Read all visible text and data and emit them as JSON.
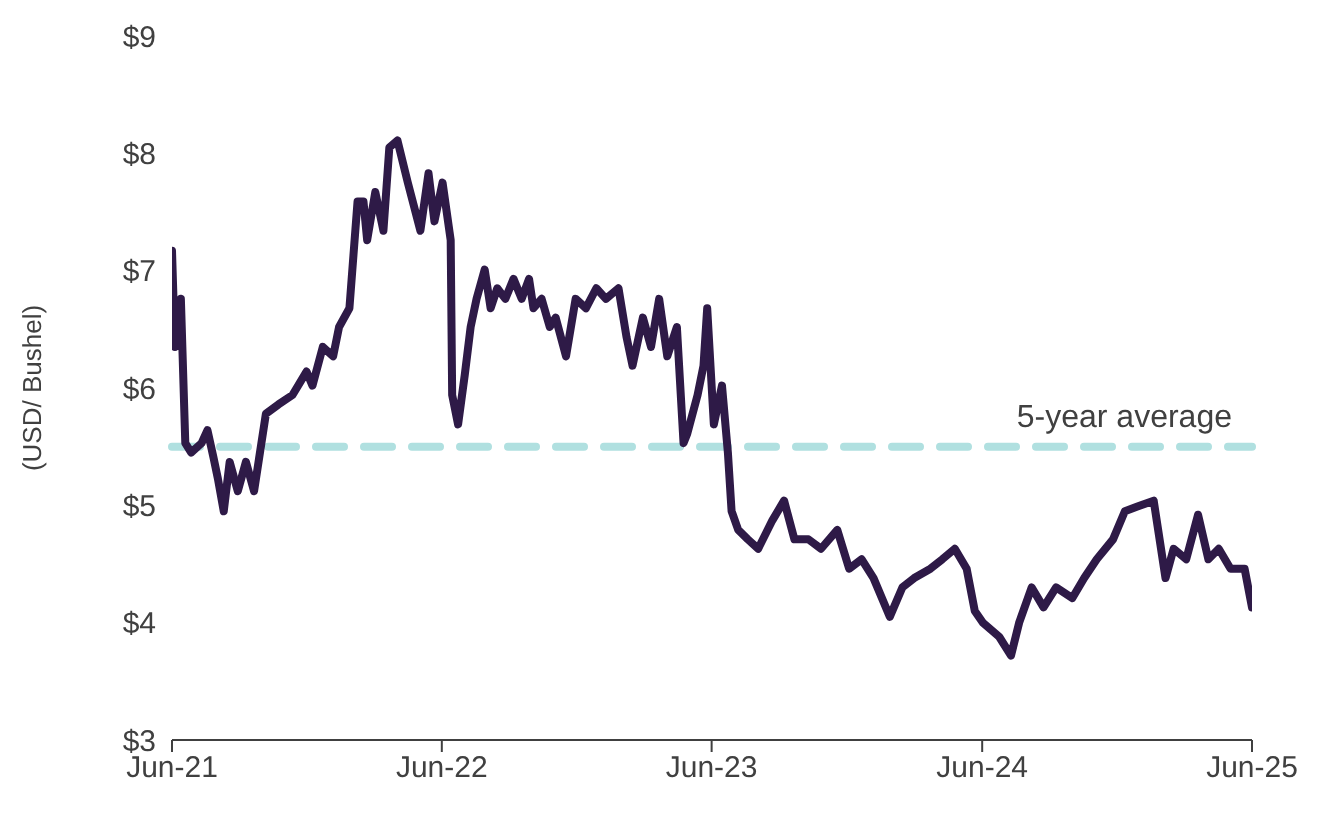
{
  "chart_data": {
    "type": "line",
    "ylabel": "(USD/ Bushel)",
    "xlim": [
      "2021-06-01",
      "2025-06-01"
    ],
    "xticks": [
      {
        "value": "2021-06-01",
        "label": "Jun-21"
      },
      {
        "value": "2022-06-01",
        "label": "Jun-22"
      },
      {
        "value": "2023-06-01",
        "label": "Jun-23"
      },
      {
        "value": "2024-06-01",
        "label": "Jun-24"
      },
      {
        "value": "2025-06-01",
        "label": "Jun-25"
      }
    ],
    "ylim": [
      3,
      9
    ],
    "yticks": [
      {
        "value": 3,
        "label": "$3"
      },
      {
        "value": 4,
        "label": "$4"
      },
      {
        "value": 5,
        "label": "$5"
      },
      {
        "value": 6,
        "label": "$6"
      },
      {
        "value": 7,
        "label": "$7"
      },
      {
        "value": 8,
        "label": "$8"
      },
      {
        "value": 9,
        "label": "$9"
      }
    ],
    "grid": false,
    "legend": false,
    "marker": "none",
    "line_style": "solid",
    "ref_lines": [
      {
        "axis": "y",
        "value": 5.5,
        "label": "5-year average",
        "color": "#b0e0e0",
        "line_style": "dashed"
      }
    ],
    "x": [
      "2021-06-01",
      "2021-06-05",
      "2021-06-13",
      "2021-06-19",
      "2021-06-27",
      "2021-07-11",
      "2021-07-19",
      "2021-07-27",
      "2021-08-02",
      "2021-08-10",
      "2021-08-18",
      "2021-08-29",
      "2021-09-09",
      "2021-09-20",
      "2021-10-06",
      "2021-10-23",
      "2021-11-11",
      "2021-11-30",
      "2021-12-08",
      "2021-12-22",
      "2022-01-05",
      "2022-01-13",
      "2022-01-27",
      "2022-02-07",
      "2022-02-15",
      "2022-02-20",
      "2022-03-03",
      "2022-03-14",
      "2022-03-22",
      "2022-04-02",
      "2022-04-16",
      "2022-05-03",
      "2022-05-14",
      "2022-05-22",
      "2022-06-02",
      "2022-06-13",
      "2022-06-15",
      "2022-06-23",
      "2022-07-02",
      "2022-07-10",
      "2022-07-18",
      "2022-07-29",
      "2022-08-06",
      "2022-08-15",
      "2022-08-26",
      "2022-09-06",
      "2022-09-17",
      "2022-09-27",
      "2022-10-03",
      "2022-10-14",
      "2022-10-25",
      "2022-11-02",
      "2022-11-16",
      "2022-11-29",
      "2022-12-13",
      "2022-12-27",
      "2023-01-09",
      "2023-01-26",
      "2023-02-06",
      "2023-02-14",
      "2023-02-28",
      "2023-03-11",
      "2023-03-22",
      "2023-04-02",
      "2023-04-15",
      "2023-04-24",
      "2023-04-29",
      "2023-05-13",
      "2023-05-21",
      "2023-05-26",
      "2023-06-04",
      "2023-06-15",
      "2023-06-23",
      "2023-06-28",
      "2023-07-07",
      "2023-07-20",
      "2023-08-03",
      "2023-08-22",
      "2023-09-07",
      "2023-09-21",
      "2023-10-10",
      "2023-10-27",
      "2023-11-18",
      "2023-12-04",
      "2023-12-21",
      "2024-01-06",
      "2024-01-28",
      "2024-02-14",
      "2024-03-01",
      "2024-03-23",
      "2024-04-08",
      "2024-04-25",
      "2024-05-11",
      "2024-05-22",
      "2024-06-02",
      "2024-06-24",
      "2024-07-10",
      "2024-07-21",
      "2024-08-07",
      "2024-08-23",
      "2024-09-09",
      "2024-10-01",
      "2024-10-17",
      "2024-11-03",
      "2024-11-25",
      "2024-12-11",
      "2024-12-28",
      "2025-01-19",
      "2025-02-04",
      "2025-02-15",
      "2025-03-04",
      "2025-03-20",
      "2025-04-03",
      "2025-04-17",
      "2025-05-03",
      "2025-05-22",
      "2025-06-01"
    ],
    "series": [
      {
        "color": "#2e1a47",
        "values": [
          7.17,
          6.35,
          6.76,
          5.53,
          5.45,
          5.53,
          5.64,
          5.41,
          5.23,
          4.95,
          5.37,
          5.12,
          5.37,
          5.12,
          5.78,
          5.86,
          5.94,
          6.14,
          6.02,
          6.35,
          6.27,
          6.52,
          6.68,
          7.59,
          7.59,
          7.26,
          7.67,
          7.34,
          8.05,
          8.11,
          7.75,
          7.34,
          7.83,
          7.42,
          7.75,
          7.26,
          5.94,
          5.69,
          6.11,
          6.52,
          6.76,
          7.01,
          6.68,
          6.85,
          6.76,
          6.93,
          6.76,
          6.93,
          6.68,
          6.76,
          6.52,
          6.6,
          6.27,
          6.76,
          6.68,
          6.85,
          6.76,
          6.85,
          6.43,
          6.19,
          6.6,
          6.35,
          6.76,
          6.27,
          6.52,
          5.53,
          5.61,
          5.94,
          6.19,
          6.68,
          5.69,
          6.02,
          5.45,
          4.95,
          4.79,
          4.71,
          4.63,
          4.87,
          5.04,
          4.71,
          4.71,
          4.63,
          4.79,
          4.46,
          4.54,
          4.38,
          4.05,
          4.3,
          4.38,
          4.46,
          4.54,
          4.63,
          4.46,
          4.1,
          4.0,
          3.88,
          3.72,
          4.0,
          4.3,
          4.13,
          4.3,
          4.21,
          4.38,
          4.54,
          4.71,
          4.95,
          4.99,
          5.04,
          4.38,
          4.63,
          4.54,
          4.92,
          4.54,
          4.63,
          4.46,
          4.46,
          4.13
        ]
      }
    ]
  }
}
